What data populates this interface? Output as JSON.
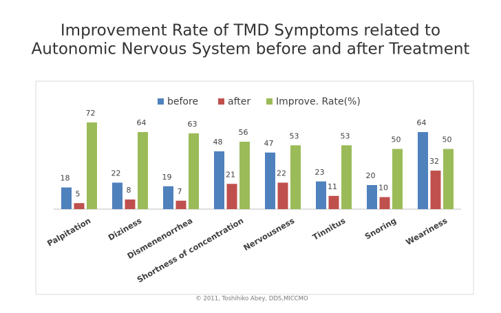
{
  "chart_data": {
    "type": "bar",
    "title": [
      "Improvement  Rate  of TMD Symptoms related to",
      "Autonomic Nervous System before and after Treatment"
    ],
    "categories": [
      "Palpitation",
      "Diziness",
      "Dismenenorrhea",
      "Shortness of concentration",
      "Nervousness",
      "Tinnitus",
      "Snoring",
      "Weariness"
    ],
    "series": [
      {
        "name": "before",
        "color": "#4f81bd",
        "values": [
          18,
          22,
          19,
          48,
          47,
          23,
          20,
          64
        ]
      },
      {
        "name": "after",
        "color": "#c0504d",
        "values": [
          5,
          8,
          7,
          21,
          22,
          11,
          10,
          32
        ]
      },
      {
        "name": "Improve. Rate(%)",
        "color": "#9bbb59",
        "values": [
          72,
          64,
          63,
          56,
          53,
          53,
          50,
          50
        ]
      }
    ],
    "footnote": "© 2011, Toshihiko Abey, DDS,MICCMO"
  }
}
